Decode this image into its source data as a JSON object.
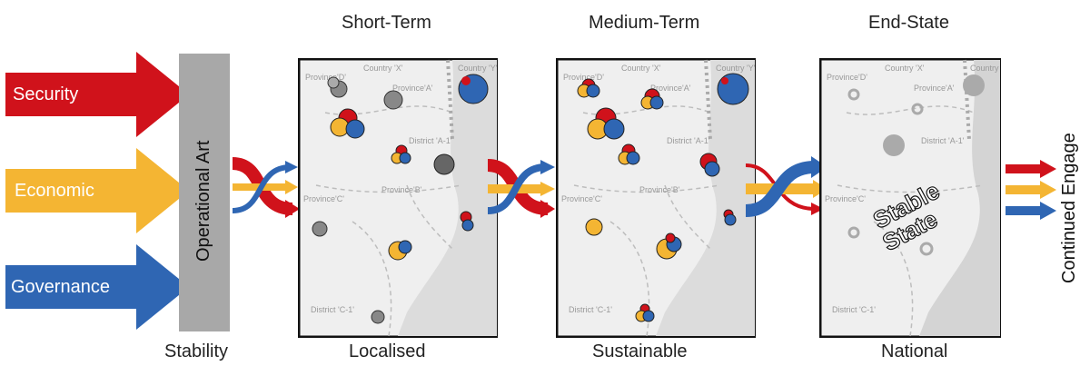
{
  "pillars": [
    {
      "label": "Security",
      "color": "#d0121b"
    },
    {
      "label": "Economic",
      "color": "#f4b533"
    },
    {
      "label": "Governance",
      "color": "#2f66b3"
    }
  ],
  "operational_art": "Operational Art",
  "stability": "Stability",
  "phases": [
    {
      "title": "Short-Term",
      "caption": "Localised"
    },
    {
      "title": "Medium-Term",
      "caption": "Sustainable"
    },
    {
      "title": "End-State",
      "caption": "National"
    }
  ],
  "map_labels": {
    "province_d": "Province'D'",
    "province_a": "Province'A'",
    "province_b": "Province'B'",
    "province_c": "Province'C'",
    "country_x": "Country 'X'",
    "country_y": "Country 'Y'",
    "district_a1": "District 'A-1'",
    "district_c1": "District 'C-1'"
  },
  "stable_state": {
    "line1": "Stable",
    "line2": "State"
  },
  "continued_engagement": "Continued Engage",
  "colors": {
    "grey_bar": "#a8a8a8",
    "map_bg": "#efefef",
    "frame": "#111111"
  }
}
